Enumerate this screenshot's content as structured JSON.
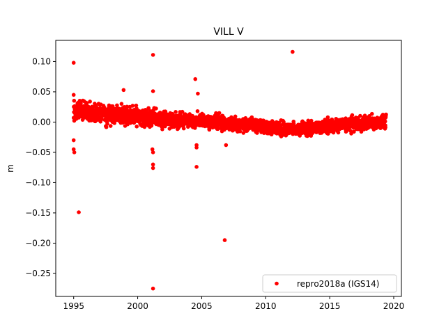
{
  "chart_data": {
    "type": "scatter",
    "title": "VILL V",
    "xlabel": "",
    "ylabel": "m",
    "xlim": [
      1993.6,
      2020.6
    ],
    "ylim": [
      -0.288,
      0.135
    ],
    "xticks": [
      1995,
      2000,
      2005,
      2010,
      2015,
      2020
    ],
    "xtick_labels": [
      "1995",
      "2000",
      "2005",
      "2010",
      "2015",
      "2020"
    ],
    "yticks": [
      0.1,
      0.05,
      0.0,
      -0.05,
      -0.1,
      -0.15,
      -0.2,
      -0.25
    ],
    "ytick_labels": [
      "0.10",
      "0.05",
      "0.00",
      "−0.05",
      "−0.10",
      "−0.15",
      "−0.20",
      "−0.25"
    ],
    "grid": false,
    "legend_position": "lower-right",
    "series": [
      {
        "name": "repro2018a (IGS14)",
        "color": "#ff0000",
        "marker": "circle",
        "trend": [
          [
            1995.0,
            0.018
          ],
          [
            1995.5,
            0.02
          ],
          [
            1996.0,
            0.019
          ],
          [
            1996.5,
            0.017
          ],
          [
            1997.0,
            0.015
          ],
          [
            1997.5,
            0.014
          ],
          [
            1998.0,
            0.013
          ],
          [
            1998.5,
            0.012
          ],
          [
            1999.0,
            0.011
          ],
          [
            1999.5,
            0.01
          ],
          [
            2000.0,
            0.009
          ],
          [
            2000.5,
            0.008
          ],
          [
            2001.0,
            0.007
          ],
          [
            2001.5,
            0.006
          ],
          [
            2002.0,
            0.005
          ],
          [
            2002.5,
            0.004
          ],
          [
            2003.0,
            0.004
          ],
          [
            2003.5,
            0.003
          ],
          [
            2004.0,
            0.003
          ],
          [
            2004.5,
            0.002
          ],
          [
            2005.0,
            0.002
          ],
          [
            2005.5,
            0.001
          ],
          [
            2006.0,
            0.001
          ],
          [
            2006.5,
            0.0
          ],
          [
            2007.0,
            -0.003
          ],
          [
            2007.5,
            -0.004
          ],
          [
            2008.0,
            -0.004
          ],
          [
            2008.5,
            -0.005
          ],
          [
            2009.0,
            -0.005
          ],
          [
            2009.5,
            -0.006
          ],
          [
            2010.0,
            -0.007
          ],
          [
            2010.5,
            -0.009
          ],
          [
            2011.0,
            -0.01
          ],
          [
            2011.5,
            -0.011
          ],
          [
            2012.0,
            -0.012
          ],
          [
            2012.5,
            -0.011
          ],
          [
            2013.0,
            -0.01
          ],
          [
            2013.5,
            -0.01
          ],
          [
            2014.0,
            -0.009
          ],
          [
            2014.5,
            -0.008
          ],
          [
            2015.0,
            -0.007
          ],
          [
            2015.5,
            -0.006
          ],
          [
            2016.0,
            -0.005
          ],
          [
            2016.5,
            -0.004
          ],
          [
            2017.0,
            -0.003
          ],
          [
            2017.5,
            -0.002
          ],
          [
            2018.0,
            -0.001
          ],
          [
            2018.5,
            0.0
          ],
          [
            2019.0,
            0.0
          ],
          [
            2019.4,
            0.001
          ]
        ],
        "outliers": [
          [
            1995.0,
            0.098
          ],
          [
            1995.0,
            0.045
          ],
          [
            1995.0,
            -0.03
          ],
          [
            1995.0,
            -0.045
          ],
          [
            1995.05,
            -0.05
          ],
          [
            1995.4,
            -0.149
          ],
          [
            1998.9,
            0.053
          ],
          [
            2001.2,
            0.111
          ],
          [
            2001.2,
            0.051
          ],
          [
            2001.15,
            -0.045
          ],
          [
            2001.2,
            -0.05
          ],
          [
            2001.2,
            -0.07
          ],
          [
            2001.2,
            -0.076
          ],
          [
            2001.2,
            -0.275
          ],
          [
            2004.5,
            0.071
          ],
          [
            2004.7,
            0.047
          ],
          [
            2004.6,
            -0.038
          ],
          [
            2004.6,
            -0.042
          ],
          [
            2004.6,
            -0.074
          ],
          [
            2006.8,
            -0.195
          ],
          [
            2006.9,
            -0.038
          ],
          [
            2012.1,
            0.116
          ]
        ]
      }
    ]
  }
}
